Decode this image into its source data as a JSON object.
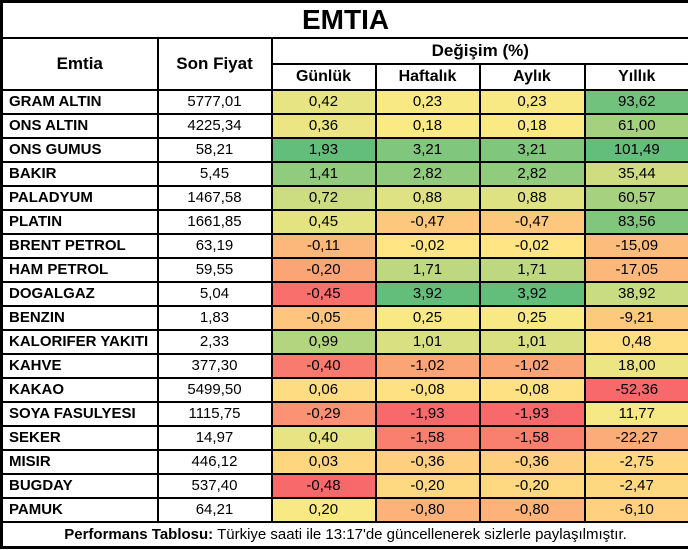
{
  "title": "EMTIA",
  "headers": {
    "commodity": "Emtia",
    "last_price": "Son Fiyat",
    "change_group": "Değişim (%)",
    "sub": [
      "Günlük",
      "Haftalık",
      "Aylık",
      "Yıllık"
    ]
  },
  "color_scale": {
    "min": "#F8696B",
    "mid": "#FFEB84",
    "max": "#63BE7B"
  },
  "rows": [
    {
      "name": "GRAM ALTIN",
      "price": "5777,01",
      "changes": [
        "0,42",
        "0,23",
        "0,23",
        "93,62"
      ],
      "colors": [
        "#E6E483",
        "#F9E984",
        "#F9E984",
        "#70C27C"
      ]
    },
    {
      "name": "ONS ALTIN",
      "price": "4225,34",
      "changes": [
        "0,36",
        "0,18",
        "0,18",
        "61,00"
      ],
      "colors": [
        "#EBE583",
        "#FBEA84",
        "#FBEA84",
        "#A5D17F"
      ]
    },
    {
      "name": "ONS GUMUS",
      "price": "58,21",
      "changes": [
        "1,93",
        "3,21",
        "3,21",
        "101,49"
      ],
      "colors": [
        "#63BE7B",
        "#80C67D",
        "#80C67D",
        "#63BE7B"
      ]
    },
    {
      "name": "BAKIR",
      "price": "5,45",
      "changes": [
        "1,41",
        "2,82",
        "2,82",
        "35,44"
      ],
      "colors": [
        "#90CB7E",
        "#90CB7E",
        "#90CB7E",
        "#CFDD81"
      ]
    },
    {
      "name": "PALADYUM",
      "price": "1467,58",
      "changes": [
        "0,72",
        "0,88",
        "0,88",
        "60,57"
      ],
      "colors": [
        "#CCDC81",
        "#DFE282",
        "#DFE282",
        "#A6D17F"
      ]
    },
    {
      "name": "PLATIN",
      "price": "1661,85",
      "changes": [
        "0,45",
        "-0,47",
        "-0,47",
        "83,56"
      ],
      "colors": [
        "#E3E382",
        "#FDC77D",
        "#FDC77D",
        "#80C67D"
      ]
    },
    {
      "name": "BRENT PETROL",
      "price": "63,19",
      "changes": [
        "-0,11",
        "-0,02",
        "-0,02",
        "-15,09"
      ],
      "colors": [
        "#FCB87A",
        "#FFE583",
        "#FFE583",
        "#FCBC7B"
      ]
    },
    {
      "name": "HAM PETROL",
      "price": "59,55",
      "changes": [
        "-0,20",
        "1,71",
        "1,71",
        "-17,05"
      ],
      "colors": [
        "#FBA576",
        "#BDD880",
        "#BDD880",
        "#FCB87A"
      ]
    },
    {
      "name": "DOGALGAZ",
      "price": "5,04",
      "changes": [
        "-0,45",
        "3,92",
        "3,92",
        "38,92"
      ],
      "colors": [
        "#F86F6C",
        "#63BE7B",
        "#63BE7B",
        "#C9DC81"
      ]
    },
    {
      "name": "BENZIN",
      "price": "1,83",
      "changes": [
        "-0,05",
        "0,25",
        "0,25",
        "-9,21"
      ],
      "colors": [
        "#FDC57D",
        "#F8E984",
        "#F8E984",
        "#FDC97D"
      ]
    },
    {
      "name": "KALORIFER YAKITI",
      "price": "2,33",
      "changes": [
        "0,99",
        "1,01",
        "1,01",
        "0,48"
      ],
      "colors": [
        "#B4D580",
        "#D9E082",
        "#D9E082",
        "#FEDF82"
      ]
    },
    {
      "name": "KAHVE",
      "price": "377,30",
      "changes": [
        "-0,40",
        "-1,02",
        "-1,02",
        "18,00"
      ],
      "colors": [
        "#F97A6E",
        "#FBA476",
        "#FBA476",
        "#ECE583"
      ]
    },
    {
      "name": "KAKAO",
      "price": "5499,50",
      "changes": [
        "0,06",
        "-0,08",
        "-0,08",
        "-52,36"
      ],
      "colors": [
        "#FEDC81",
        "#FEE182",
        "#FEE182",
        "#F8696B"
      ]
    },
    {
      "name": "SOYA FASULYESI",
      "price": "1115,75",
      "changes": [
        "-0,29",
        "-1,93",
        "-1,93",
        "11,77"
      ],
      "colors": [
        "#FA9273",
        "#F8696B",
        "#F8696B",
        "#F6E884"
      ]
    },
    {
      "name": "SEKER",
      "price": "14,97",
      "changes": [
        "0,40",
        "-1,58",
        "-1,58",
        "-22,27"
      ],
      "colors": [
        "#E8E483",
        "#F9806F",
        "#F9806F",
        "#FCAC78"
      ]
    },
    {
      "name": "MISIR",
      "price": "446,12",
      "changes": [
        "0,03",
        "-0,36",
        "-0,36",
        "-2,75"
      ],
      "colors": [
        "#FED680",
        "#FECF7F",
        "#FECF7F",
        "#FED780"
      ]
    },
    {
      "name": "BUGDAY",
      "price": "537,40",
      "changes": [
        "-0,48",
        "-0,20",
        "-0,20",
        "-2,47"
      ],
      "colors": [
        "#F8696B",
        "#FED981",
        "#FED981",
        "#FED880"
      ]
    },
    {
      "name": "PAMUK",
      "price": "64,21",
      "changes": [
        "0,20",
        "-0,80",
        "-0,80",
        "-6,10"
      ],
      "colors": [
        "#F9E984",
        "#FCB279",
        "#FCB279",
        "#FED07F"
      ]
    }
  ],
  "footer": {
    "label": "Performans Tablosu:",
    "text": "Türkiye saati ile 13:17'de güncellenerek sizlerle paylaşılmıştır."
  },
  "chart_data": {
    "type": "table",
    "title": "EMTIA",
    "columns": [
      "Emtia",
      "Son Fiyat",
      "Günlük",
      "Haftalık",
      "Aylık",
      "Yıllık"
    ],
    "rows": [
      [
        "GRAM ALTIN",
        5777.01,
        0.42,
        0.23,
        0.23,
        93.62
      ],
      [
        "ONS ALTIN",
        4225.34,
        0.36,
        0.18,
        0.18,
        61.0
      ],
      [
        "ONS GUMUS",
        58.21,
        1.93,
        3.21,
        3.21,
        101.49
      ],
      [
        "BAKIR",
        5.45,
        1.41,
        2.82,
        2.82,
        35.44
      ],
      [
        "PALADYUM",
        1467.58,
        0.72,
        0.88,
        0.88,
        60.57
      ],
      [
        "PLATIN",
        1661.85,
        0.45,
        -0.47,
        -0.47,
        83.56
      ],
      [
        "BRENT PETROL",
        63.19,
        -0.11,
        -0.02,
        -0.02,
        -15.09
      ],
      [
        "HAM PETROL",
        59.55,
        -0.2,
        1.71,
        1.71,
        -17.05
      ],
      [
        "DOGALGAZ",
        5.04,
        -0.45,
        3.92,
        3.92,
        38.92
      ],
      [
        "BENZIN",
        1.83,
        -0.05,
        0.25,
        0.25,
        -9.21
      ],
      [
        "KALORIFER YAKITI",
        2.33,
        0.99,
        1.01,
        1.01,
        0.48
      ],
      [
        "KAHVE",
        377.3,
        -0.4,
        -1.02,
        -1.02,
        18.0
      ],
      [
        "KAKAO",
        5499.5,
        0.06,
        -0.08,
        -0.08,
        -52.36
      ],
      [
        "SOYA FASULYESI",
        1115.75,
        -0.29,
        -1.93,
        -1.93,
        11.77
      ],
      [
        "SEKER",
        14.97,
        0.4,
        -1.58,
        -1.58,
        -22.27
      ],
      [
        "MISIR",
        446.12,
        0.03,
        -0.36,
        -0.36,
        -2.75
      ],
      [
        "BUGDAY",
        537.4,
        -0.48,
        -0.2,
        -0.2,
        -2.47
      ],
      [
        "PAMUK",
        64.21,
        0.2,
        -0.8,
        -0.8,
        -6.1
      ]
    ]
  }
}
